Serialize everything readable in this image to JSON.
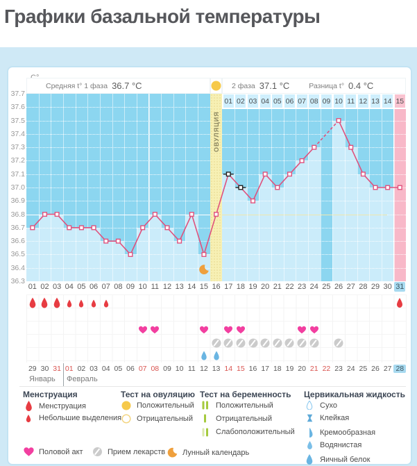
{
  "page_title": "Графики базальной температуры",
  "chart_data": {
    "type": "line",
    "unit_label": "С°",
    "header": {
      "phase1_label": "Средняя t° 1 фаза",
      "phase1_value": "36.7 °C",
      "phase2_label": "2 фаза",
      "phase2_value": "37.1 °C",
      "diff_label": "Разница t°",
      "diff_value": "0.4 °C"
    },
    "ovulation_band_label": "ОВУЛЯЦИЯ",
    "ovulation_day": 16,
    "y_ticks": [
      "37.7",
      "37.6",
      "37.5",
      "37.4",
      "37.3",
      "37.2",
      "37.1",
      "37.0",
      "36.9",
      "36.8",
      "36.7",
      "36.6",
      "36.5",
      "36.4",
      "36.3"
    ],
    "ylim": [
      36.3,
      37.7
    ],
    "coverline_temp": 36.8,
    "day_labels": [
      "01",
      "02",
      "03",
      "04",
      "05",
      "06",
      "07",
      "08",
      "09",
      "10",
      "11",
      "12",
      "13",
      "14",
      "15",
      "16",
      "17",
      "18",
      "19",
      "20",
      "21",
      "22",
      "23",
      "24",
      "25",
      "26",
      "27",
      "28",
      "29",
      "30",
      "31"
    ],
    "phase2_day_labels": [
      "01",
      "02",
      "03",
      "04",
      "05",
      "06",
      "07",
      "08",
      "09",
      "10",
      "11",
      "12",
      "13",
      "14",
      "15"
    ],
    "phase2_pink_label_index": 14,
    "highlighted_day_index": 30,
    "temperatures": [
      36.7,
      36.8,
      36.8,
      36.7,
      36.7,
      36.7,
      36.6,
      36.6,
      36.5,
      36.7,
      36.8,
      36.7,
      36.6,
      36.8,
      36.5,
      36.8,
      37.1,
      37.0,
      36.9,
      37.1,
      37.0,
      37.1,
      37.2,
      37.3,
      null,
      37.5,
      37.3,
      37.1,
      37.0,
      37.0,
      37.0
    ],
    "missing_day": 25,
    "dash_marked_days": [
      17,
      18
    ],
    "pink_column_day": 31,
    "dark_column_day": 25,
    "events": {
      "menstruation_heavy_days": [
        1,
        2,
        3,
        31
      ],
      "menstruation_light_days": [
        4,
        5,
        6,
        7
      ],
      "intercourse_days": [
        10,
        11,
        15,
        17,
        18,
        23,
        24
      ],
      "medication_days": [
        16,
        17,
        18,
        19,
        20,
        21,
        22,
        23,
        24,
        26
      ],
      "cervical_fluid_days": [
        15,
        16
      ],
      "lunar_calendar_day": 15
    },
    "calendar": {
      "dates": [
        "29",
        "30",
        "31",
        "01",
        "02",
        "03",
        "04",
        "05",
        "06",
        "07",
        "08",
        "09",
        "10",
        "11",
        "12",
        "13",
        "14",
        "15",
        "16",
        "17",
        "18",
        "19",
        "20",
        "21",
        "22",
        "23",
        "24",
        "25",
        "26",
        "27",
        "28"
      ],
      "red_date_indexes": [
        2,
        3,
        9,
        10,
        16,
        17,
        23,
        24
      ],
      "highlighted_date_index": 30,
      "month_divider_after_index": 2,
      "months": [
        {
          "label": "Январь"
        },
        {
          "label": "Февраль"
        }
      ]
    }
  },
  "colors": {
    "dark_blue": "#8cd6f0",
    "light_blue": "#cbecfa",
    "pink_column": "#f8b8c8",
    "line_pink": "#e0507c",
    "band_yellow": "#f7f0b4",
    "circle_yellow": "#f6c94a",
    "red_drop": "#e73c42",
    "heart_pink": "#f23fa0",
    "blue_drop": "#6ab5e2",
    "moon_orange": "#efa03d",
    "green_bar": "#a5ca3e",
    "pale_green_bar": "#dbe8ad",
    "pill_gray": "#cbcbcb",
    "marker_black": "#1f1f1f"
  },
  "legend": {
    "sections": [
      {
        "title": "Менструация",
        "items": [
          {
            "icon": "drop-red-large",
            "label": "Менструация"
          },
          {
            "icon": "drop-red-small",
            "label": "Небольшие выделения"
          }
        ]
      },
      {
        "title": "Тест на овуляцию",
        "items": [
          {
            "icon": "circle-yellow-filled",
            "label": "Положительный"
          },
          {
            "icon": "circle-yellow-outline",
            "label": "Отрицательный"
          }
        ]
      },
      {
        "title": "Тест на беременность",
        "items": [
          {
            "icon": "bars-green-two",
            "label": "Положительный"
          },
          {
            "icon": "bar-green-one",
            "label": "Отрицательный"
          },
          {
            "icon": "bars-weak",
            "label": "Слабоположительный"
          }
        ]
      },
      {
        "title": "Цервикальная жидкость",
        "items": [
          {
            "icon": "drop-blue-outline",
            "label": "Сухо"
          },
          {
            "icon": "hourglass-blue",
            "label": "Клейкая"
          },
          {
            "icon": "drop-blue-half",
            "label": "Кремообразная"
          },
          {
            "icon": "drop-blue-small",
            "label": "Водянистая"
          },
          {
            "icon": "drop-blue-large",
            "label": "Яичный белок"
          }
        ]
      }
    ],
    "footer_items": [
      {
        "icon": "heart-pink",
        "label": "Половой акт"
      },
      {
        "icon": "pill-gray",
        "label": "Прием лекарств"
      },
      {
        "icon": "moon-orange",
        "label": "Лунный календарь"
      }
    ]
  }
}
